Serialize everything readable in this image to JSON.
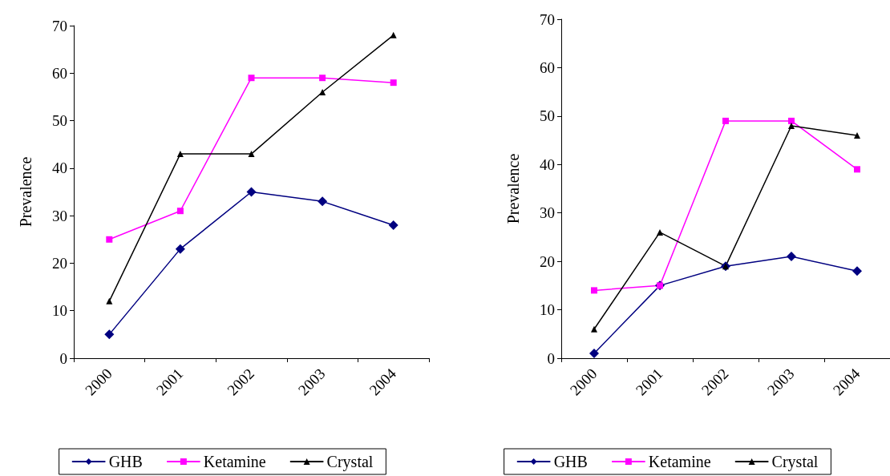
{
  "chart_data": [
    {
      "type": "line",
      "ylabel": "Prevalence",
      "categories": [
        "2000",
        "2001",
        "2002",
        "2003",
        "2004"
      ],
      "ylim": [
        0,
        70
      ],
      "yticks": [
        0,
        10,
        20,
        30,
        40,
        50,
        60,
        70
      ],
      "grid": false,
      "legend": "bottom",
      "series": [
        {
          "name": "GHB",
          "color": "#000080",
          "marker": "diamond",
          "values": [
            5,
            23,
            35,
            33,
            28
          ]
        },
        {
          "name": "Ketamine",
          "color": "#ff00ff",
          "marker": "square",
          "values": [
            25,
            31,
            59,
            59,
            58
          ]
        },
        {
          "name": "Crystal",
          "color": "#000000",
          "marker": "triangle",
          "values": [
            12,
            43,
            43,
            56,
            68
          ]
        }
      ]
    },
    {
      "type": "line",
      "ylabel": "Prevalence",
      "categories": [
        "2000",
        "2001",
        "2002",
        "2003",
        "2004"
      ],
      "ylim": [
        0,
        70
      ],
      "yticks": [
        0,
        10,
        20,
        30,
        40,
        50,
        60,
        70
      ],
      "grid": false,
      "legend": "bottom",
      "series": [
        {
          "name": "GHB",
          "color": "#000080",
          "marker": "diamond",
          "values": [
            1,
            15,
            19,
            21,
            18
          ]
        },
        {
          "name": "Ketamine",
          "color": "#ff00ff",
          "marker": "square",
          "values": [
            14,
            15,
            49,
            49,
            39
          ]
        },
        {
          "name": "Crystal",
          "color": "#000000",
          "marker": "triangle",
          "values": [
            6,
            26,
            19,
            48,
            46
          ]
        }
      ]
    }
  ]
}
